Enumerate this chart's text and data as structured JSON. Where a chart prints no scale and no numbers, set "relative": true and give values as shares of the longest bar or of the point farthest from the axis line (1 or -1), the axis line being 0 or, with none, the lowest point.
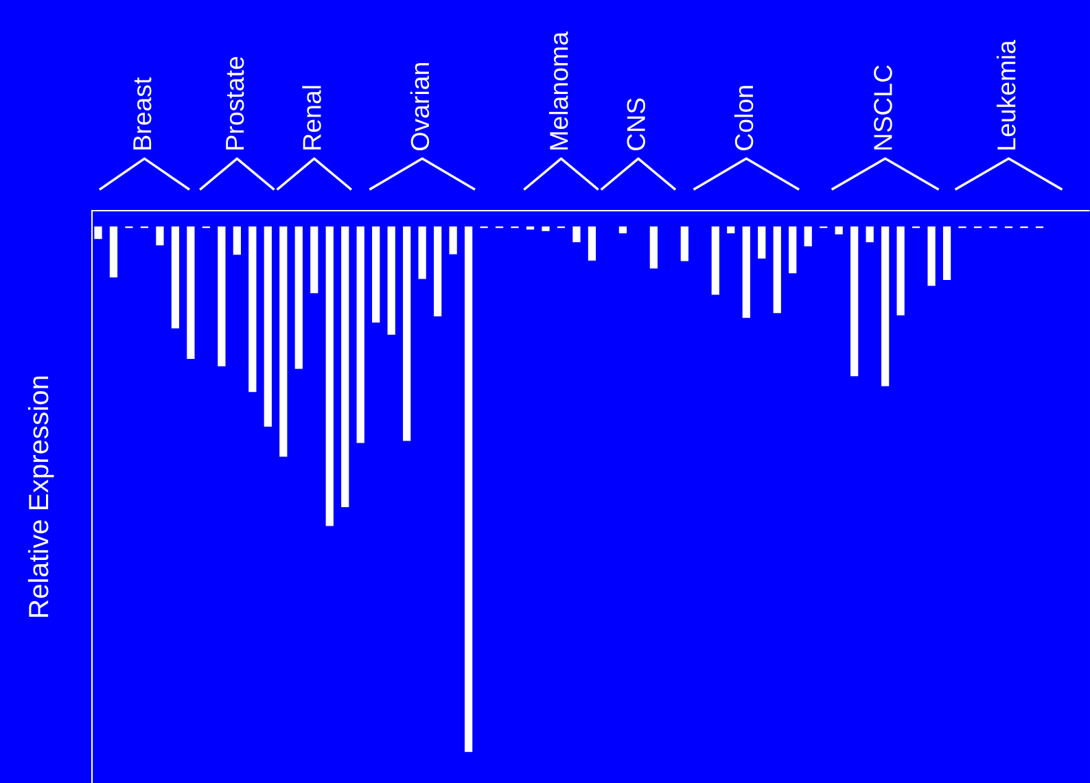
{
  "chart_data": {
    "type": "bar",
    "relative": true,
    "ylabel": "Relative Expression",
    "color": "#ffffff",
    "categories": [
      null,
      null,
      null,
      "Breast",
      null,
      null,
      null,
      null,
      null,
      "Prostate",
      null,
      null,
      null,
      null,
      "Renal",
      null,
      null,
      null,
      null,
      null,
      null,
      "Ovarian",
      null,
      null,
      null,
      null,
      null,
      null,
      null,
      null,
      "Melanoma",
      null,
      null,
      null,
      null,
      "CNS",
      null,
      null,
      null,
      null,
      null,
      null,
      "Colon",
      null,
      null,
      null,
      null,
      null,
      null,
      null,
      null,
      "NSCLC",
      null,
      null,
      null,
      null,
      null,
      null,
      null,
      "Leukemia",
      null,
      null
    ],
    "values": [
      -0.024,
      -0.097,
      -0.003,
      -0.003,
      -0.036,
      -0.194,
      -0.252,
      -0.003,
      -0.266,
      -0.054,
      -0.315,
      -0.381,
      -0.438,
      -0.271,
      -0.127,
      -0.57,
      -0.534,
      -0.412,
      -0.183,
      -0.206,
      -0.408,
      -0.1,
      -0.171,
      -0.053,
      -1,
      -0.003,
      -0.003,
      -0.003,
      -0.006,
      -0.009,
      -0.003,
      -0.03,
      -0.065,
      null,
      -0.013,
      null,
      -0.08,
      null,
      -0.066,
      null,
      -0.13,
      -0.013,
      -0.174,
      -0.061,
      -0.165,
      -0.089,
      -0.038,
      -0.003,
      -0.015,
      -0.285,
      -0.03,
      -0.304,
      -0.169,
      -0.003,
      -0.113,
      -0.102,
      -0.003,
      -0.003,
      -0.003,
      -0.003,
      -0.003,
      -0.003
    ]
  }
}
